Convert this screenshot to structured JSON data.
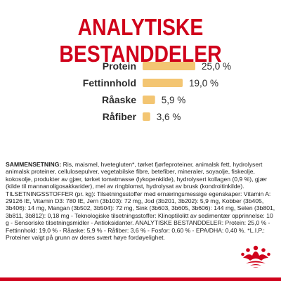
{
  "page": {
    "title": "ANALYTISKE BESTANDDELER"
  },
  "chart_data": {
    "type": "bar",
    "orientation": "horizontal",
    "categories": [
      "Protein",
      "Fettinnhold",
      "Råaske",
      "Råfiber"
    ],
    "values": [
      25.0,
      19.0,
      5.9,
      3.6
    ],
    "value_labels": [
      "25,0 %",
      "19,0 %",
      "5,9 %",
      "3,6 %"
    ],
    "title": "ANALYTISKE BESTANDDELER",
    "xlabel": "",
    "ylabel": "",
    "xlim": [
      0,
      25
    ],
    "grid": false,
    "bar_color": "#f3c572"
  },
  "ingredients": {
    "heading": "SAMMENSETNING:",
    "text": "Ris, maismel, hvetegluten*, tørket fjørfeproteiner, animalsk fett, hydrolysert animalsk proteiner, cellulosepulver, vegetabilske fibre, betefiber, mineraler, soyaolje, fiskeolje, kokosolje, produkter av gjær, tørket tomatmasse (lykopenkilde), hydrolysert kollagen (0,9 %), gjær (kilde til mannanoligosakkarider), mel av ringblomst, hydrolysat av brusk (kondroitinkilde). TILSETNINGSSTOFFER (pr. kg): Tilsetningsstoffer med ernæringsmessige egenskaper: Vitamin A: 29126 IE, Vitamin D3: 780 IE, Jern (3b103): 72 mg, Jod (3b201, 3b202): 5,9 mg, Kobber (3b405, 3b406): 14 mg, Mangan (3b502, 3b504): 72 mg, Sink (3b603, 3b605, 3b606): 144 mg, Selen (3b801, 3b811, 3b812): 0,18 mg - Teknologiske tilsetningsstoffer: Klinoptilolitt av sedimentær opprinnelse: 10 g - Sensoriske tilsetningsmidler - Antioksidanter. ANALYTISKE BESTANDDELER: Protein: 25,0 % - Fettinnhold: 19,0 % - Råaske: 5,9 % - Råfiber: 3,6 % - Fosfor: 0,60 % - EPA/DHA: 0,40 %. *L.I.P.: Proteiner valgt på grunn av deres svært høye fordøyelighet."
  },
  "brand": {
    "logo": "royal-canin-crown-logo",
    "accent_color": "#d0021b"
  }
}
